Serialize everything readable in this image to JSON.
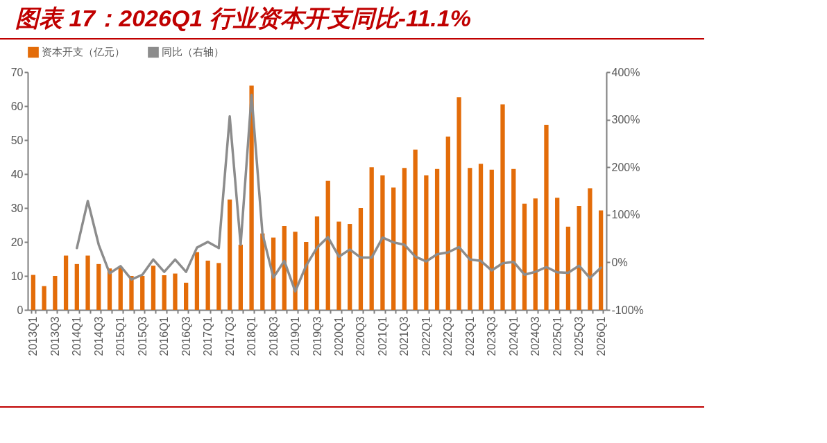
{
  "chart_data": {
    "type": "bar",
    "title": "图表 17：2026Q1 行业资本开支同比-11.1%",
    "categories": [
      "2013Q1",
      null,
      "2013Q3",
      null,
      "2014Q1",
      null,
      "2014Q3",
      null,
      "2015Q1",
      null,
      "2015Q3",
      null,
      "2016Q1",
      null,
      "2016Q3",
      null,
      "2017Q1",
      null,
      "2017Q3",
      null,
      "2018Q1",
      null,
      "2018Q3",
      null,
      "2019Q1",
      null,
      "2019Q3",
      null,
      "2020Q1",
      null,
      "2020Q3",
      null,
      "2021Q1",
      null,
      "2021Q3",
      null,
      "2022Q1",
      null,
      "2022Q3",
      null,
      "2023Q1",
      null,
      "2023Q3",
      null,
      "2024Q1",
      null,
      "2024Q3",
      null,
      "2025Q1",
      null,
      "2025Q3",
      null,
      "2026Q1"
    ],
    "series": [
      {
        "name": "资本开支（亿元）",
        "color": "#e36c09",
        "values": [
          10.3,
          7,
          10,
          16,
          13.5,
          16,
          13.5,
          12.2,
          12.5,
          10,
          10,
          13,
          10.2,
          10.7,
          8,
          17,
          14.5,
          13.8,
          32.5,
          19.2,
          66,
          22.5,
          21.3,
          24.7,
          23,
          20,
          27.5,
          38,
          26,
          25.3,
          30,
          42,
          39.6,
          36,
          41.8,
          47.2,
          39.6,
          41.5,
          51,
          62.6,
          41.8,
          43,
          41.3,
          60.5,
          41.5,
          31.3,
          32.8,
          54.5,
          33,
          24.5,
          30.6,
          35.8,
          29.3
        ]
      },
      {
        "name": "同比（右轴）",
        "type": "line",
        "axis": "y2",
        "color": "#8c8c8c",
        "values": [
          null,
          null,
          null,
          null,
          30,
          129,
          37,
          -23,
          -8,
          -36,
          -26,
          6,
          -20,
          6,
          -20,
          31,
          43,
          30,
          307,
          37,
          352,
          60,
          -32,
          3,
          -61,
          -7,
          31,
          53,
          12,
          27,
          10,
          10,
          52,
          42,
          37,
          12,
          2,
          17,
          21,
          32,
          6,
          3,
          -17,
          -2,
          1,
          -26,
          -20,
          -10,
          -21,
          -22,
          -7,
          -33,
          -11.1
        ]
      }
    ],
    "ylim": [
      0,
      70
    ],
    "yticks": [
      0,
      10,
      20,
      30,
      40,
      50,
      60,
      70
    ],
    "y2lim": [
      -100,
      400
    ],
    "y2ticks": [
      {
        "value": -100,
        "label": "-100%"
      },
      {
        "value": 0,
        "label": "0%"
      },
      {
        "value": 100,
        "label": "100%"
      },
      {
        "value": 200,
        "label": "200%"
      },
      {
        "value": 300,
        "label": "300%"
      },
      {
        "value": 400,
        "label": "400%"
      }
    ],
    "grid": false,
    "legend": "top"
  }
}
